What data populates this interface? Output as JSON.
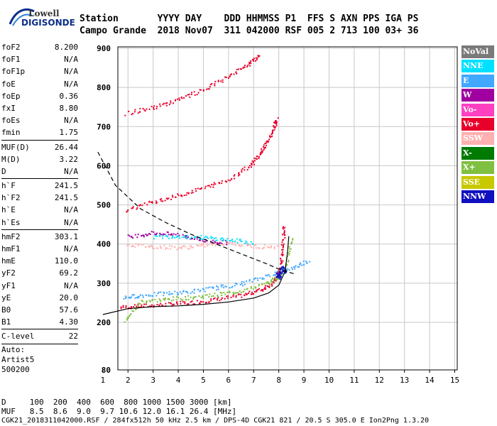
{
  "logo": {
    "line1": "Lowell",
    "line2": "DIGISONDE"
  },
  "header": {
    "line1": "Station       YYYY DAY    DDD HHMMSS P1  FFS S AXN PPS IGA PS",
    "line2": "Campo Grande  2018 Nov07  311 042000 RSF 005 2 713 100 03+ 36"
  },
  "params": [
    {
      "k": "foF2",
      "v": "8.200"
    },
    {
      "k": "foF1",
      "v": "N/A"
    },
    {
      "k": "foF1p",
      "v": "N/A"
    },
    {
      "k": "foE",
      "v": "N/A"
    },
    {
      "k": "foEp",
      "v": "0.36"
    },
    {
      "k": "fxI",
      "v": "8.80"
    },
    {
      "k": "foEs",
      "v": "N/A"
    },
    {
      "k": "fmin",
      "v": "1.75"
    },
    {
      "sep": true
    },
    {
      "k": "MUF(D)",
      "v": "26.44"
    },
    {
      "k": "M(D)",
      "v": "3.22"
    },
    {
      "k": "D",
      "v": "N/A"
    },
    {
      "sep": true
    },
    {
      "k": "h`F",
      "v": "241.5"
    },
    {
      "k": "h`F2",
      "v": "241.5"
    },
    {
      "k": "h`E",
      "v": "N/A"
    },
    {
      "k": "h`Es",
      "v": "N/A"
    },
    {
      "sep": true
    },
    {
      "k": "hmF2",
      "v": "303.1"
    },
    {
      "k": "hmF1",
      "v": "N/A"
    },
    {
      "k": "hmE",
      "v": "110.0"
    },
    {
      "k": "yF2",
      "v": "69.2"
    },
    {
      "k": "yF1",
      "v": "N/A"
    },
    {
      "k": "yE",
      "v": "20.0"
    },
    {
      "k": "B0",
      "v": "57.6"
    },
    {
      "k": "B1",
      "v": "4.30"
    },
    {
      "sep": true
    },
    {
      "k": "C-level",
      "v": "22"
    },
    {
      "sep": true
    }
  ],
  "auto": {
    "line1": "Auto:",
    "line2": "Artist5",
    "line3": "500200"
  },
  "legend": [
    {
      "label": "NoVal",
      "color": "#7a7a7a"
    },
    {
      "label": "NNE",
      "color": "#00e0ff"
    },
    {
      "label": "E",
      "color": "#40a8ff"
    },
    {
      "label": "W",
      "color": "#a000a0"
    },
    {
      "label": "Vo-",
      "color": "#ff40c0"
    },
    {
      "label": "Vo+",
      "color": "#e8002a"
    },
    {
      "label": "SSW",
      "color": "#ffb0b0"
    },
    {
      "label": "X-",
      "color": "#007a00"
    },
    {
      "label": "X+",
      "color": "#80c040"
    },
    {
      "label": "SSE",
      "color": "#c8c800"
    },
    {
      "label": "NNW",
      "color": "#1010c0"
    }
  ],
  "footer": {
    "line1": "D     100  200  400  600  800 1000 1500 3000 [km]",
    "line2": "MUF   8.5  8.6  9.0  9.7 10.6 12.0 16.1 26.4 [MHz]",
    "line3": "CGK21_2018311042000.RSF / 284fx512h 50 kHz 2.5 km / DPS-4D CGK21 821 / 20.5 S 305.0 E Ion2Png 1.3.20"
  },
  "chart_data": {
    "type": "scatter",
    "x_ticks": [
      1,
      2,
      3,
      4,
      5,
      6,
      7,
      8,
      9,
      10,
      11,
      12,
      13,
      14,
      15
    ],
    "y_ticks": [
      80,
      200,
      300,
      400,
      500,
      600,
      700,
      800,
      900
    ],
    "xlim": [
      0.75,
      15.1
    ],
    "ylim": [
      80,
      905
    ],
    "grid": true,
    "series": [
      {
        "name": "Vo+",
        "color": "#e8002a",
        "points": [
          [
            1.7,
            240
          ],
          [
            2.5,
            243
          ],
          [
            3.5,
            247
          ],
          [
            4.5,
            252
          ],
          [
            5.5,
            260
          ],
          [
            6.5,
            270
          ],
          [
            7.3,
            285
          ],
          [
            7.8,
            305
          ],
          [
            8.05,
            340
          ],
          [
            8.15,
            400
          ],
          [
            8.2,
            450
          ]
        ]
      },
      {
        "name": "X+",
        "color": "#80c040",
        "points": [
          [
            1.9,
            205
          ],
          [
            2.5,
            255
          ],
          [
            3.5,
            260
          ],
          [
            4.5,
            265
          ],
          [
            5.5,
            272
          ],
          [
            6.5,
            282
          ],
          [
            7.5,
            300
          ],
          [
            8.0,
            320
          ],
          [
            8.3,
            350
          ],
          [
            8.5,
            420
          ]
        ]
      },
      {
        "name": "E",
        "color": "#40a8ff",
        "points": [
          [
            1.8,
            265
          ],
          [
            2.5,
            270
          ],
          [
            3.5,
            275
          ],
          [
            4.5,
            280
          ],
          [
            5.5,
            290
          ],
          [
            6.5,
            300
          ],
          [
            7.5,
            320
          ],
          [
            8.5,
            340
          ],
          [
            9.2,
            360
          ]
        ]
      },
      {
        "name": "SSW",
        "color": "#ffb0b0",
        "points": [
          [
            2,
            400
          ],
          [
            3,
            395
          ],
          [
            4,
            392
          ],
          [
            5,
            398
          ],
          [
            6,
            405
          ],
          [
            7,
            395
          ],
          [
            8,
            395
          ]
        ]
      },
      {
        "name": "W",
        "color": "#a000a0",
        "points": [
          [
            2,
            420
          ],
          [
            3,
            430
          ],
          [
            4,
            425
          ],
          [
            5,
            410
          ],
          [
            6,
            405
          ]
        ]
      },
      {
        "name": "NNE",
        "color": "#00e0ff",
        "points": [
          [
            3,
            420
          ],
          [
            4,
            422
          ],
          [
            5,
            418
          ],
          [
            6,
            412
          ],
          [
            7,
            405
          ]
        ]
      },
      {
        "name": "NNW",
        "color": "#1010c0",
        "points": [
          [
            7.9,
            325
          ],
          [
            8.0,
            315
          ],
          [
            8.1,
            340
          ],
          [
            8.3,
            330
          ]
        ]
      },
      {
        "name": "Vo+ 2",
        "color": "#e8002a",
        "points": [
          [
            1.9,
            488
          ],
          [
            3,
            510
          ],
          [
            4,
            525
          ],
          [
            5,
            545
          ],
          [
            6,
            565
          ],
          [
            6.8,
            600
          ],
          [
            7.2,
            630
          ],
          [
            7.5,
            660
          ],
          [
            7.8,
            700
          ],
          [
            7.9,
            720
          ]
        ]
      },
      {
        "name": "Vo+ 3",
        "color": "#e8002a",
        "points": [
          [
            1.9,
            735
          ],
          [
            3,
            750
          ],
          [
            4,
            770
          ],
          [
            5,
            795
          ],
          [
            6,
            830
          ],
          [
            6.8,
            860
          ],
          [
            7.2,
            885
          ]
        ]
      }
    ],
    "profile": [
      [
        1.0,
        220
      ],
      [
        2,
        235
      ],
      [
        3,
        240
      ],
      [
        4,
        242
      ],
      [
        5,
        246
      ],
      [
        6,
        252
      ],
      [
        7,
        262
      ],
      [
        7.6,
        275
      ],
      [
        8.0,
        295
      ],
      [
        8.25,
        330
      ],
      [
        8.35,
        380
      ],
      [
        8.4,
        420
      ]
    ],
    "muf_curve": [
      [
        0.8,
        635
      ],
      [
        1.5,
        550
      ],
      [
        2.5,
        490
      ],
      [
        3.5,
        455
      ],
      [
        4.5,
        425
      ],
      [
        5.5,
        400
      ],
      [
        6.5,
        375
      ],
      [
        7.5,
        350
      ],
      [
        8.0,
        336
      ],
      [
        8.6,
        324
      ]
    ]
  }
}
